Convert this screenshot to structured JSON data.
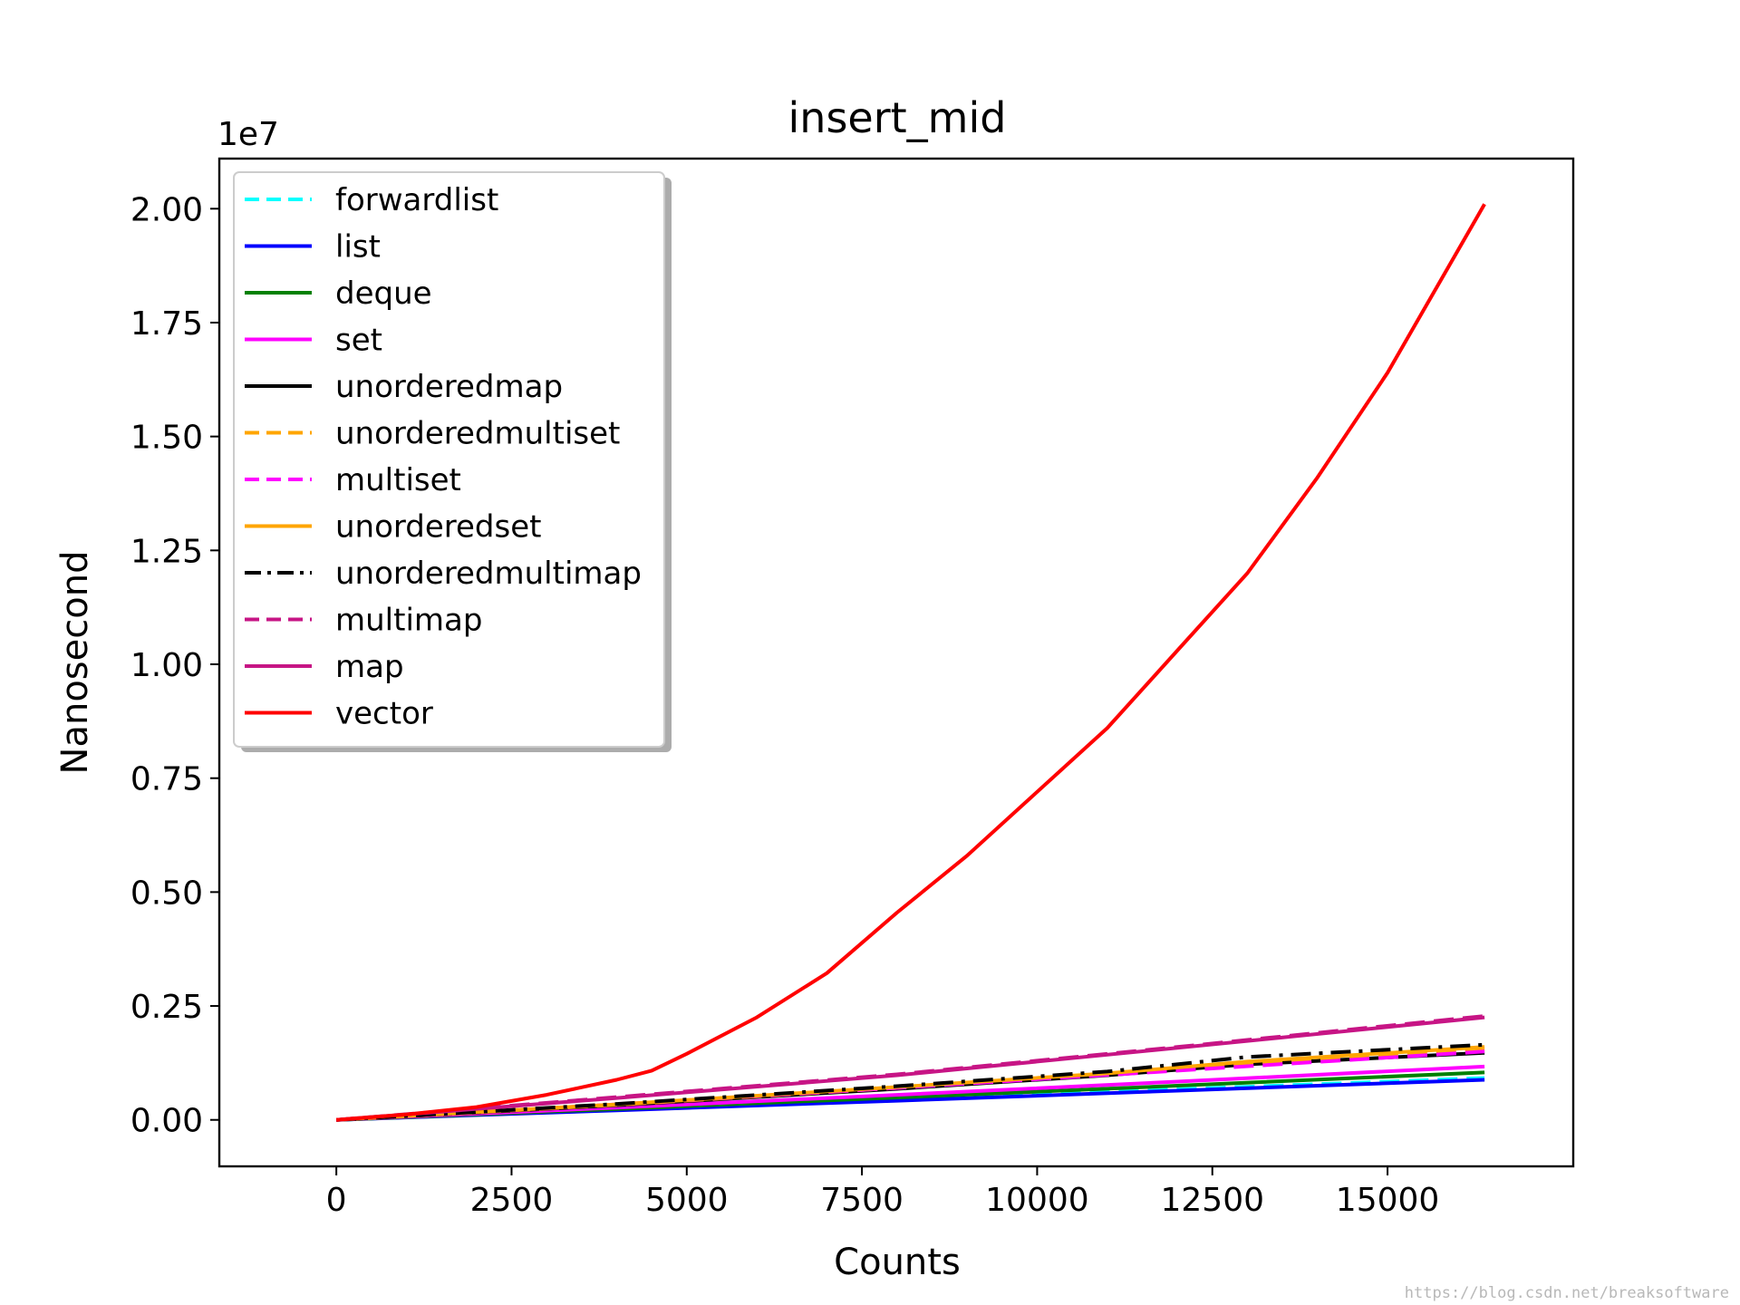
{
  "chart_data": {
    "type": "line",
    "title": "insert_mid",
    "xlabel": "Counts",
    "ylabel": "Nanosecond",
    "y_offset_text": "1e7",
    "xlim": [
      -1670,
      17650
    ],
    "ylim": [
      -0.102,
      2.11
    ],
    "y_scale_factor": 10000000,
    "xticks": [
      0,
      2500,
      5000,
      7500,
      10000,
      12500,
      15000
    ],
    "xtick_labels": [
      "0",
      "2500",
      "5000",
      "7500",
      "10000",
      "12500",
      "15000"
    ],
    "yticks": [
      0.0,
      0.25,
      0.5,
      0.75,
      1.0,
      1.25,
      1.5,
      1.75,
      2.0
    ],
    "ytick_labels": [
      "0.00",
      "0.25",
      "0.50",
      "0.75",
      "1.00",
      "1.25",
      "1.50",
      "1.75",
      "2.00"
    ],
    "grid": false,
    "legend_position": "top-left",
    "series": [
      {
        "name": "forwardlist",
        "color": "#00ffff",
        "dash": "dashed",
        "x": [
          0,
          4000,
          8000,
          12000,
          16384
        ],
        "y": [
          0,
          0.022,
          0.044,
          0.067,
          0.092
        ]
      },
      {
        "name": "list",
        "color": "#0000ff",
        "dash": "solid",
        "x": [
          0,
          4000,
          8000,
          12000,
          16384
        ],
        "y": [
          0,
          0.021,
          0.042,
          0.064,
          0.088
        ]
      },
      {
        "name": "deque",
        "color": "#008000",
        "dash": "solid",
        "x": [
          0,
          4000,
          8000,
          12000,
          16384
        ],
        "y": [
          0,
          0.024,
          0.049,
          0.075,
          0.104
        ]
      },
      {
        "name": "set",
        "color": "#ff00ff",
        "dash": "solid",
        "x": [
          0,
          4000,
          8000,
          12000,
          16384
        ],
        "y": [
          0,
          0.027,
          0.055,
          0.084,
          0.117
        ]
      },
      {
        "name": "unorderedmap",
        "color": "#000000",
        "dash": "solid",
        "x": [
          0,
          4000,
          8000,
          11000,
          13000,
          16384
        ],
        "y": [
          0,
          0.032,
          0.068,
          0.098,
          0.122,
          0.147
        ]
      },
      {
        "name": "unorderedmultiset",
        "color": "#ffa500",
        "dash": "dashed",
        "x": [
          0,
          4000,
          8000,
          11000,
          13000,
          16384
        ],
        "y": [
          0,
          0.033,
          0.07,
          0.1,
          0.125,
          0.155
        ]
      },
      {
        "name": "multiset",
        "color": "#ff00ff",
        "dash": "dashed",
        "x": [
          0,
          4000,
          8000,
          12000,
          16384
        ],
        "y": [
          0,
          0.034,
          0.07,
          0.108,
          0.15
        ]
      },
      {
        "name": "unorderedset",
        "color": "#ffa500",
        "dash": "solid",
        "x": [
          0,
          4000,
          8000,
          11000,
          13000,
          16384
        ],
        "y": [
          0,
          0.034,
          0.072,
          0.102,
          0.128,
          0.16
        ]
      },
      {
        "name": "unorderedmultimap",
        "color": "#000000",
        "dash": "dashdot",
        "x": [
          0,
          4000,
          8000,
          11000,
          13000,
          16384
        ],
        "y": [
          0,
          0.035,
          0.074,
          0.106,
          0.138,
          0.165
        ]
      },
      {
        "name": "multimap",
        "color": "#c71585",
        "dash": "dashed",
        "x": [
          0,
          4000,
          8000,
          12000,
          16384
        ],
        "y": [
          0,
          0.05,
          0.1,
          0.16,
          0.228
        ]
      },
      {
        "name": "map",
        "color": "#c71585",
        "dash": "solid",
        "x": [
          0,
          4000,
          8000,
          12000,
          16384
        ],
        "y": [
          0,
          0.048,
          0.098,
          0.158,
          0.225
        ]
      },
      {
        "name": "vector",
        "color": "#ff0000",
        "dash": "solid",
        "x": [
          0,
          1000,
          2000,
          3000,
          4000,
          4500,
          5000,
          6000,
          7000,
          8000,
          9000,
          10000,
          11000,
          12000,
          13000,
          14000,
          15000,
          16384
        ],
        "y": [
          0,
          0.012,
          0.028,
          0.055,
          0.088,
          0.108,
          0.145,
          0.225,
          0.322,
          0.455,
          0.58,
          0.72,
          0.86,
          1.03,
          1.2,
          1.41,
          1.64,
          2.01
        ]
      }
    ]
  },
  "watermark": "https://blog.csdn.net/breaksoftware"
}
